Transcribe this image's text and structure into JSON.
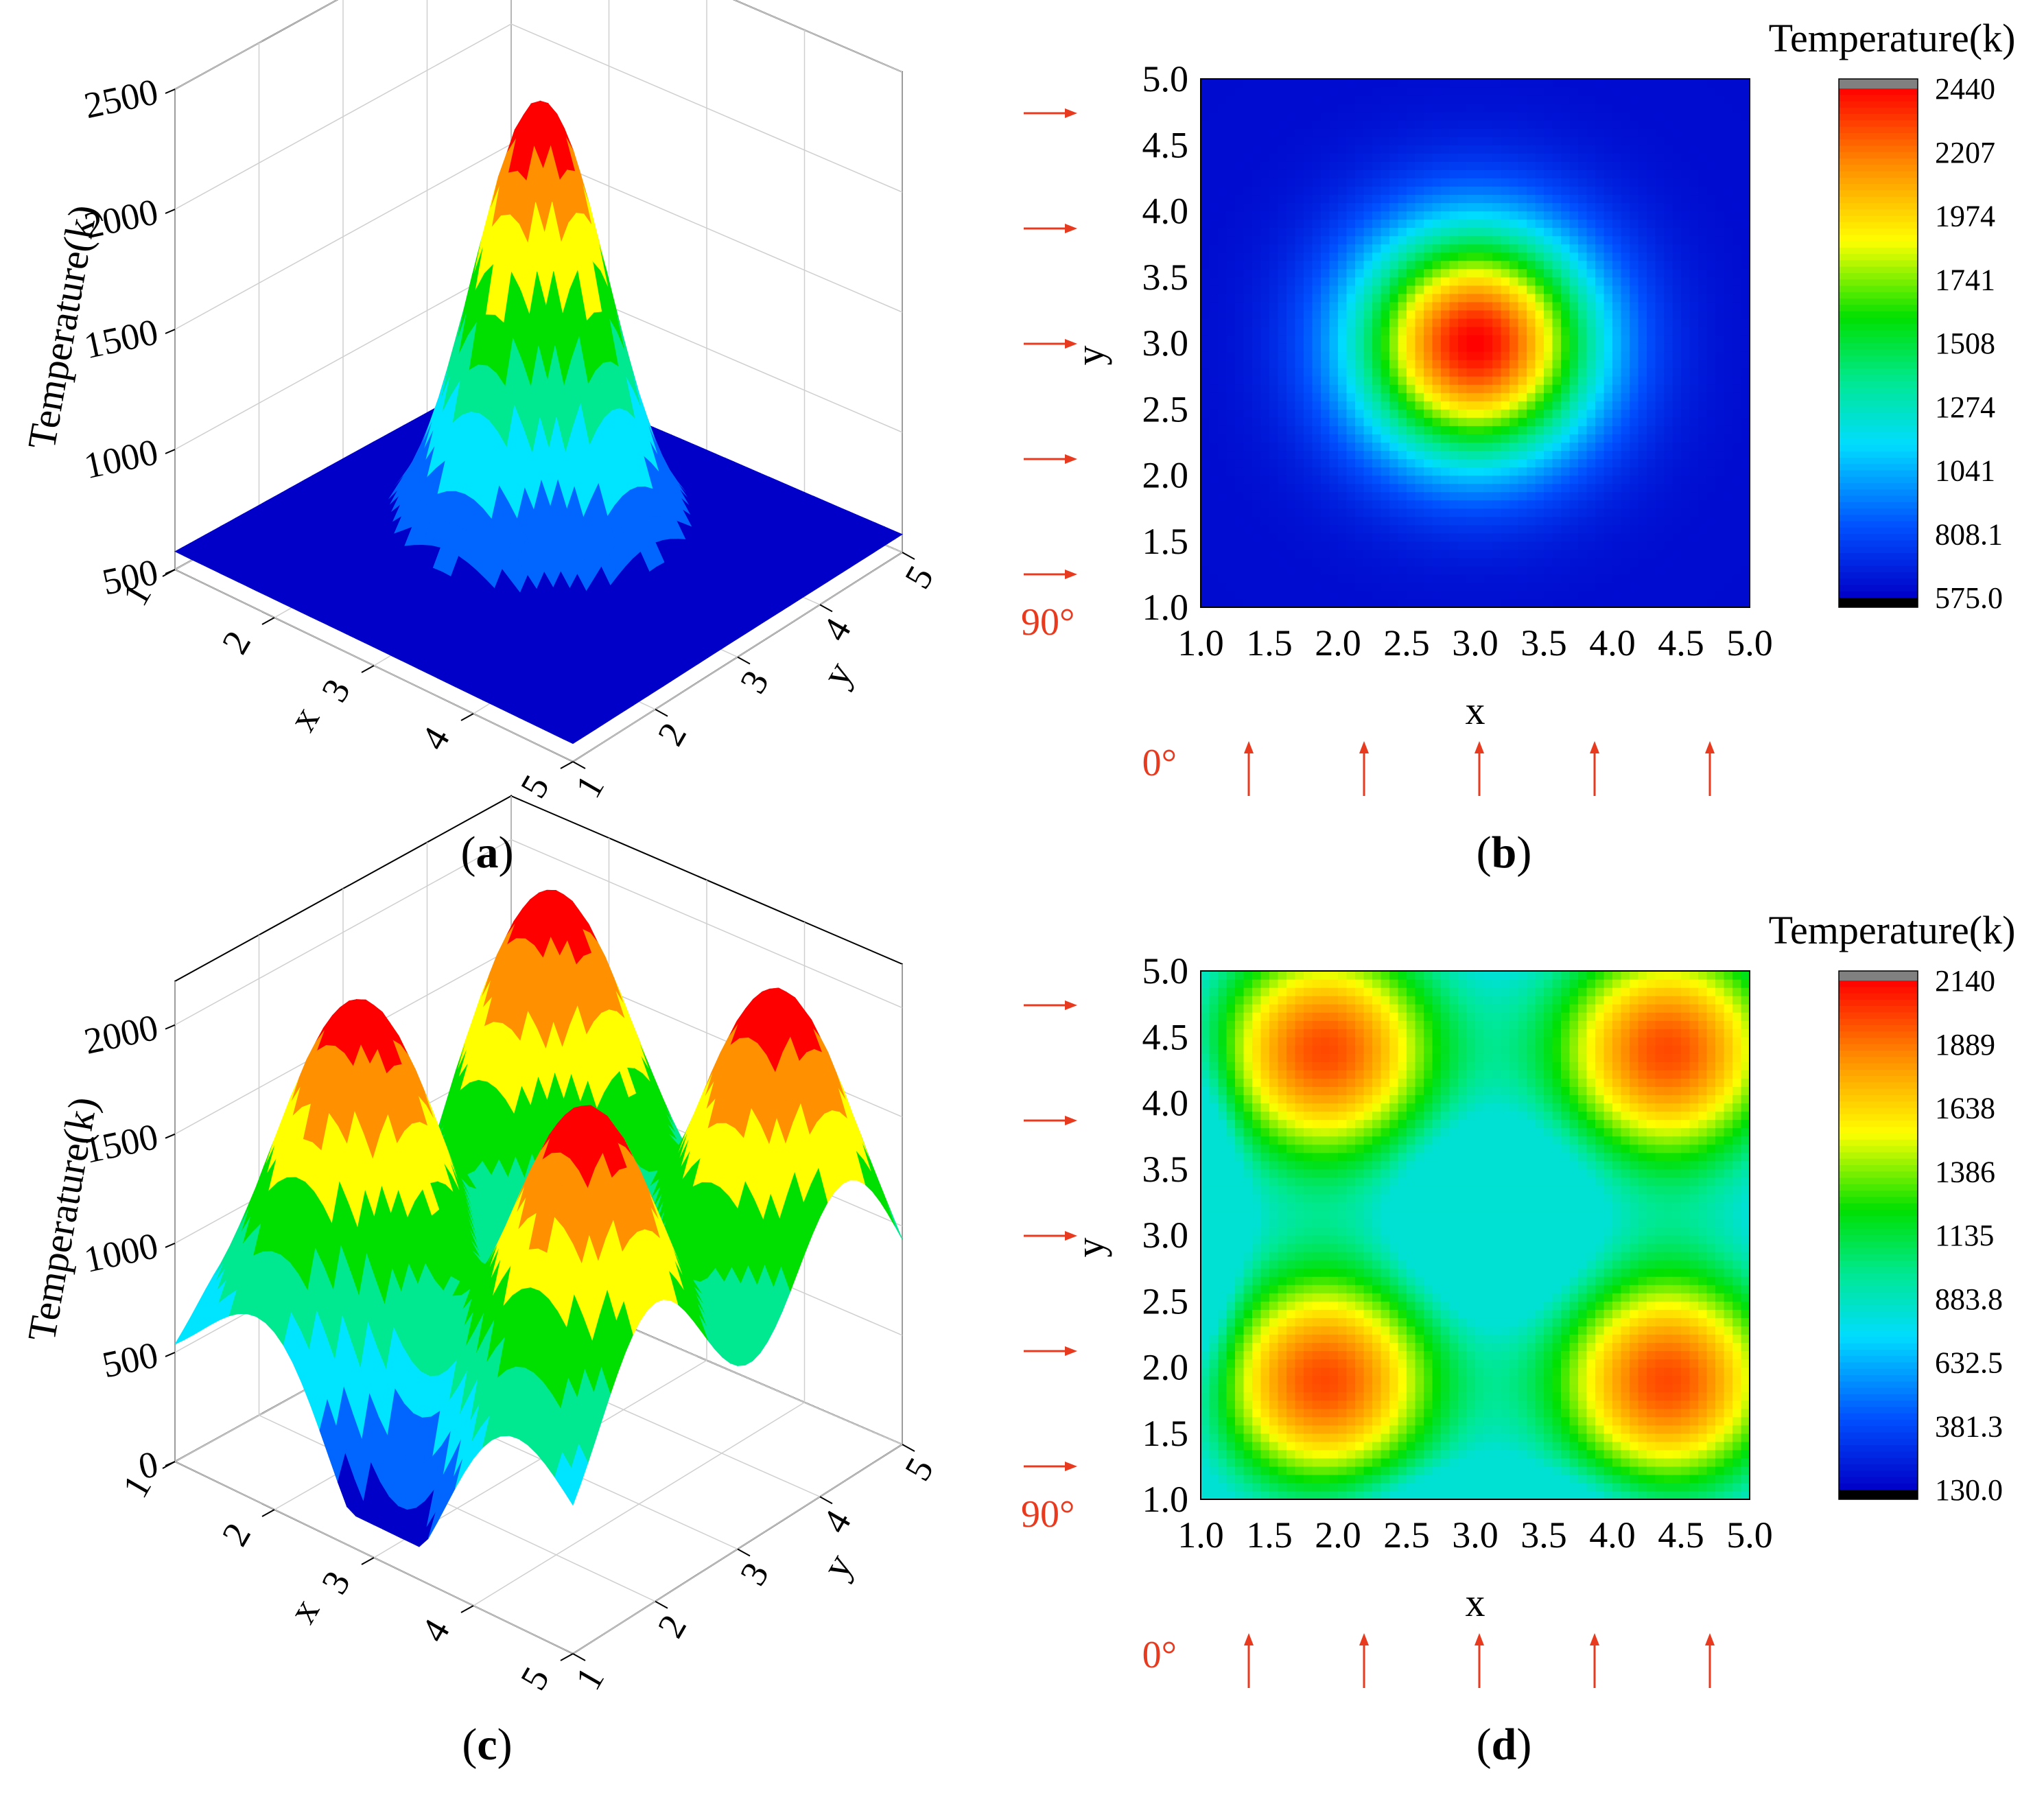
{
  "captions": [
    "a",
    "b",
    "c",
    "d"
  ],
  "chart_data": [
    {
      "type": "surface3d",
      "panel": "a",
      "zlabel": "Temperature(k)",
      "xlabel": "x",
      "ylabel": "y",
      "zticks": [
        500,
        1000,
        1500,
        2000,
        2500
      ],
      "xticks": [
        1,
        2,
        3,
        4,
        5
      ],
      "yticks": [
        1,
        2,
        3,
        4,
        5
      ],
      "zlim": [
        500,
        2500
      ],
      "peak": {
        "x": 3.0,
        "y": 3.0,
        "value": 2440
      },
      "base_value": 575
    },
    {
      "type": "heatmap",
      "panel": "b",
      "xlabel": "x",
      "ylabel": "y",
      "xticks": [
        "1.0",
        "1.5",
        "2.0",
        "2.5",
        "3.0",
        "3.5",
        "4.0",
        "4.5",
        "5.0"
      ],
      "yticks": [
        "1.0",
        "1.5",
        "2.0",
        "2.5",
        "3.0",
        "3.5",
        "4.0",
        "4.5",
        "5.0"
      ],
      "xlim": [
        1.0,
        5.0
      ],
      "ylim": [
        1.0,
        5.0
      ],
      "colorbar_title": "Temperature(k)",
      "colorbar_ticks": [
        "2440",
        "2207",
        "1974",
        "1741",
        "1508",
        "1274",
        "1041",
        "808.1",
        "575.0"
      ],
      "colorbar_range": [
        575.0,
        2440
      ],
      "hotspots": [
        {
          "x": 3.0,
          "y": 3.0
        }
      ],
      "angle_labels": {
        "left": "90°",
        "bottom": "0°"
      },
      "beam_arrows": 5
    },
    {
      "type": "surface3d",
      "panel": "c",
      "zlabel": "Temperature(k)",
      "xlabel": "x",
      "ylabel": "y",
      "zticks": [
        0,
        500,
        1000,
        1500,
        2000
      ],
      "xticks": [
        1,
        2,
        3,
        4,
        5
      ],
      "yticks": [
        1,
        2,
        3,
        4,
        5
      ],
      "zlim": [
        0,
        2200
      ],
      "peaks": [
        {
          "x": 2.0,
          "y": 2.0
        },
        {
          "x": 2.0,
          "y": 4.3
        },
        {
          "x": 4.3,
          "y": 2.0
        },
        {
          "x": 4.3,
          "y": 4.3
        }
      ],
      "max_value": 2140,
      "min_value": 130
    },
    {
      "type": "heatmap",
      "panel": "d",
      "xlabel": "x",
      "ylabel": "y",
      "xticks": [
        "1.0",
        "1.5",
        "2.0",
        "2.5",
        "3.0",
        "3.5",
        "4.0",
        "4.5",
        "5.0"
      ],
      "yticks": [
        "1.0",
        "1.5",
        "2.0",
        "2.5",
        "3.0",
        "3.5",
        "4.0",
        "4.5",
        "5.0"
      ],
      "xlim": [
        1.0,
        5.0
      ],
      "ylim": [
        1.0,
        5.0
      ],
      "colorbar_title": "Temperature(k)",
      "colorbar_ticks": [
        "2140",
        "1889",
        "1638",
        "1386",
        "1135",
        "883.8",
        "632.5",
        "381.3",
        "130.0"
      ],
      "colorbar_range": [
        130.0,
        2140
      ],
      "hotspots": [
        {
          "x": 1.9,
          "y": 1.9
        },
        {
          "x": 1.9,
          "y": 4.4
        },
        {
          "x": 4.4,
          "y": 1.9
        },
        {
          "x": 4.4,
          "y": 4.4
        }
      ],
      "angle_labels": {
        "left": "90°",
        "bottom": "0°"
      },
      "beam_arrows": 5
    }
  ],
  "colors": {
    "arrow": "#e83a1f",
    "jet": [
      "#0000c8",
      "#0066ff",
      "#00e5ff",
      "#00e890",
      "#00e000",
      "#ffff00",
      "#ff9000",
      "#ff0000"
    ]
  }
}
